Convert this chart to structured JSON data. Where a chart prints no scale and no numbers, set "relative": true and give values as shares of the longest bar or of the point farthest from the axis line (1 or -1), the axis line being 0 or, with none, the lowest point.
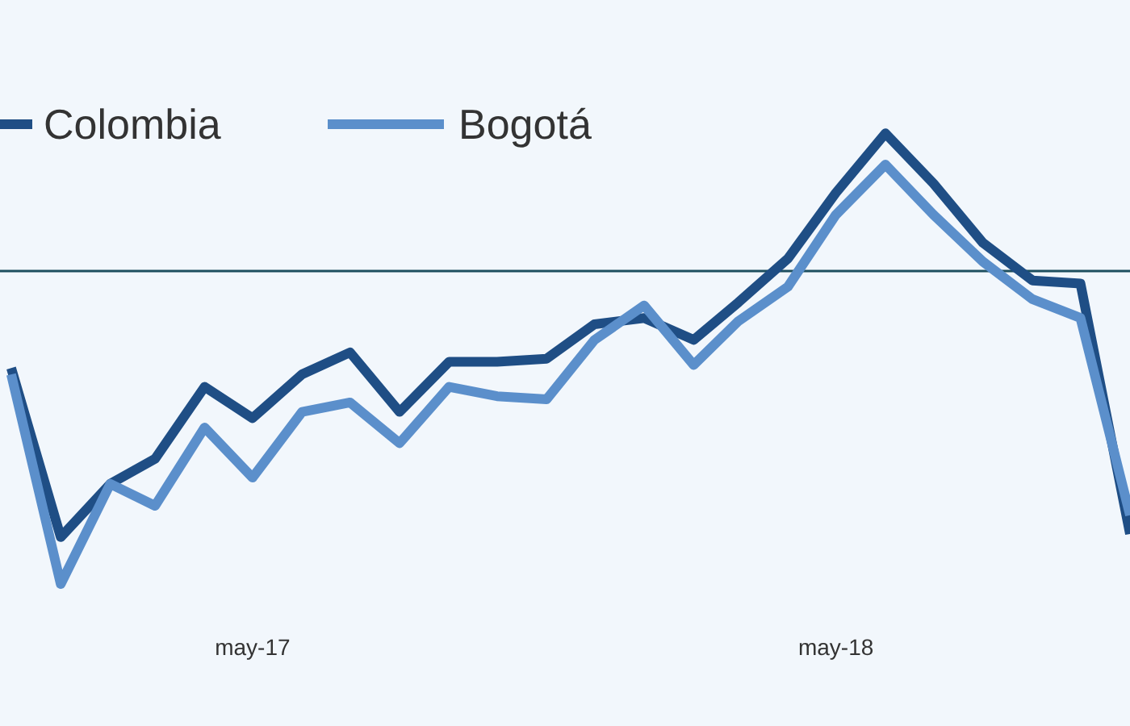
{
  "chart_data": {
    "type": "line",
    "relative": true,
    "x": [
      "2016-12",
      "2017-01",
      "2017-02",
      "2017-03",
      "2017-04",
      "2017-05",
      "2017-06",
      "2017-07",
      "2017-08",
      "2017-09",
      "2017-10",
      "2017-11",
      "2017-12",
      "2018-01",
      "2018-02",
      "2018-03",
      "2018-04",
      "2018-05",
      "2018-06",
      "2018-07",
      "2018-08",
      "2018-09",
      "2018-10",
      "2018-11"
    ],
    "xlim": [
      "2016-11-24",
      "2018-11-01"
    ],
    "xticks": [
      {
        "value": "2017-05",
        "label": "may-17"
      },
      {
        "value": "2018-05",
        "label": "may-18"
      }
    ],
    "series": [
      {
        "name": "Colombia",
        "color": "#1f4e85",
        "values": [
          -0.31,
          -0.85,
          -0.68,
          -0.6,
          -0.37,
          -0.47,
          -0.33,
          -0.26,
          -0.45,
          -0.29,
          -0.29,
          -0.28,
          -0.17,
          -0.15,
          -0.22,
          -0.1,
          0.04,
          0.25,
          0.44,
          0.28,
          0.09,
          -0.03,
          -0.04,
          -0.84
        ]
      },
      {
        "name": "Bogotá",
        "color": "#5b8fcb",
        "values": [
          -0.33,
          -1,
          -0.68,
          -0.75,
          -0.5,
          -0.66,
          -0.45,
          -0.42,
          -0.55,
          -0.37,
          -0.4,
          -0.41,
          -0.22,
          -0.11,
          -0.3,
          -0.16,
          -0.05,
          0.18,
          0.34,
          0.18,
          0.03,
          -0.09,
          -0.15,
          -0.78
        ]
      }
    ],
    "legend": "top left",
    "grid": false,
    "marker": "none",
    "line_style": "solid"
  }
}
